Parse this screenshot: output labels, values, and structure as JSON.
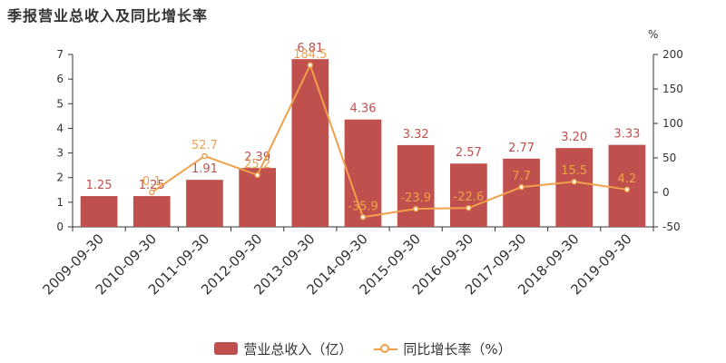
{
  "title": "季报营业总收入及同比增长率",
  "colors": {
    "bar": "#c0504d",
    "line": "#f0a04b",
    "axis": "#333333"
  },
  "legend": {
    "bar_label": "营业总收入（亿）",
    "line_label": "同比增长率（%）"
  },
  "chart_data": {
    "type": "bar",
    "title": "季报营业总收入及同比增长率",
    "categories": [
      "2009-09-30",
      "2010-09-30",
      "2011-09-30",
      "2012-09-30",
      "2013-09-30",
      "2014-09-30",
      "2015-09-30",
      "2016-09-30",
      "2017-09-30",
      "2018-09-30",
      "2019-09-30"
    ],
    "series": [
      {
        "name": "营业总收入（亿）",
        "type": "bar",
        "axis": "left",
        "values": [
          1.25,
          1.25,
          1.91,
          2.39,
          6.81,
          4.36,
          3.32,
          2.57,
          2.77,
          3.2,
          3.33
        ],
        "labels": [
          "1.25",
          "1.25",
          "1.91",
          "2.39",
          "6.81",
          "4.36",
          "3.32",
          "2.57",
          "2.77",
          "3.20",
          "3.33"
        ]
      },
      {
        "name": "同比增长率（%）",
        "type": "line",
        "axis": "right",
        "values": [
          null,
          0.1,
          52.7,
          25.2,
          184.5,
          -35.9,
          -23.9,
          -22.6,
          7.7,
          15.5,
          4.2
        ],
        "labels": [
          "",
          "0.1",
          "52.7",
          "25.2",
          "184.5",
          "-35.9",
          "-23.9",
          "-22.6",
          "7.7",
          "15.5",
          "4.2"
        ]
      }
    ],
    "y_left": {
      "min": 0,
      "max": 7,
      "ticks": [
        0,
        1,
        2,
        3,
        4,
        5,
        6,
        7
      ]
    },
    "y_right": {
      "min": -50,
      "max": 200,
      "ticks": [
        -50,
        0,
        50,
        100,
        150,
        200
      ],
      "unit": "%"
    },
    "grid": false,
    "legend_position": "bottom"
  }
}
